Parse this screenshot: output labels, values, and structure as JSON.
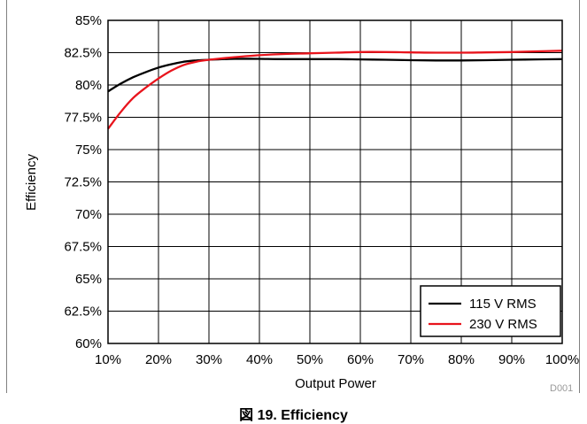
{
  "caption": "図 19. Efficiency",
  "figure_code": "D001",
  "chart_data": {
    "type": "line",
    "xlabel": "Output Power",
    "ylabel": "Efficiency",
    "xlim": [
      10,
      100
    ],
    "ylim": [
      60,
      85
    ],
    "x_ticks": [
      10,
      20,
      30,
      40,
      50,
      60,
      70,
      80,
      90,
      100
    ],
    "x_tick_labels": [
      "10%",
      "20%",
      "30%",
      "40%",
      "50%",
      "60%",
      "70%",
      "80%",
      "90%",
      "100%"
    ],
    "y_ticks": [
      60,
      62.5,
      65,
      67.5,
      70,
      72.5,
      75,
      77.5,
      80,
      82.5,
      85
    ],
    "y_tick_labels": [
      "60%",
      "62.5%",
      "65%",
      "67.5%",
      "70%",
      "72.5%",
      "75%",
      "77.5%",
      "80%",
      "82.5%",
      "85%"
    ],
    "grid": true,
    "legend_position": "bottom-right",
    "series": [
      {
        "name": "115 V RMS",
        "color": "#000000",
        "x": [
          10,
          12.5,
          15,
          17.5,
          20,
          22.5,
          25,
          27.5,
          30,
          35,
          40,
          45,
          50,
          55,
          60,
          65,
          70,
          75,
          80,
          85,
          90,
          95,
          100
        ],
        "y": [
          79.5,
          80.1,
          80.6,
          81.0,
          81.35,
          81.6,
          81.8,
          81.9,
          81.95,
          82.02,
          82.02,
          82.0,
          82.0,
          82.0,
          81.98,
          81.95,
          81.92,
          81.9,
          81.9,
          81.92,
          81.95,
          81.98,
          82.0
        ]
      },
      {
        "name": "230 V RMS",
        "color": "#e8141c",
        "x": [
          10,
          12.5,
          15,
          17.5,
          20,
          22.5,
          25,
          27.5,
          30,
          35,
          40,
          45,
          50,
          55,
          60,
          65,
          70,
          75,
          80,
          85,
          90,
          95,
          100
        ],
        "y": [
          76.6,
          77.9,
          79.0,
          79.8,
          80.5,
          81.1,
          81.55,
          81.8,
          81.95,
          82.15,
          82.3,
          82.4,
          82.45,
          82.5,
          82.55,
          82.55,
          82.52,
          82.5,
          82.5,
          82.52,
          82.55,
          82.6,
          82.65
        ]
      }
    ]
  }
}
